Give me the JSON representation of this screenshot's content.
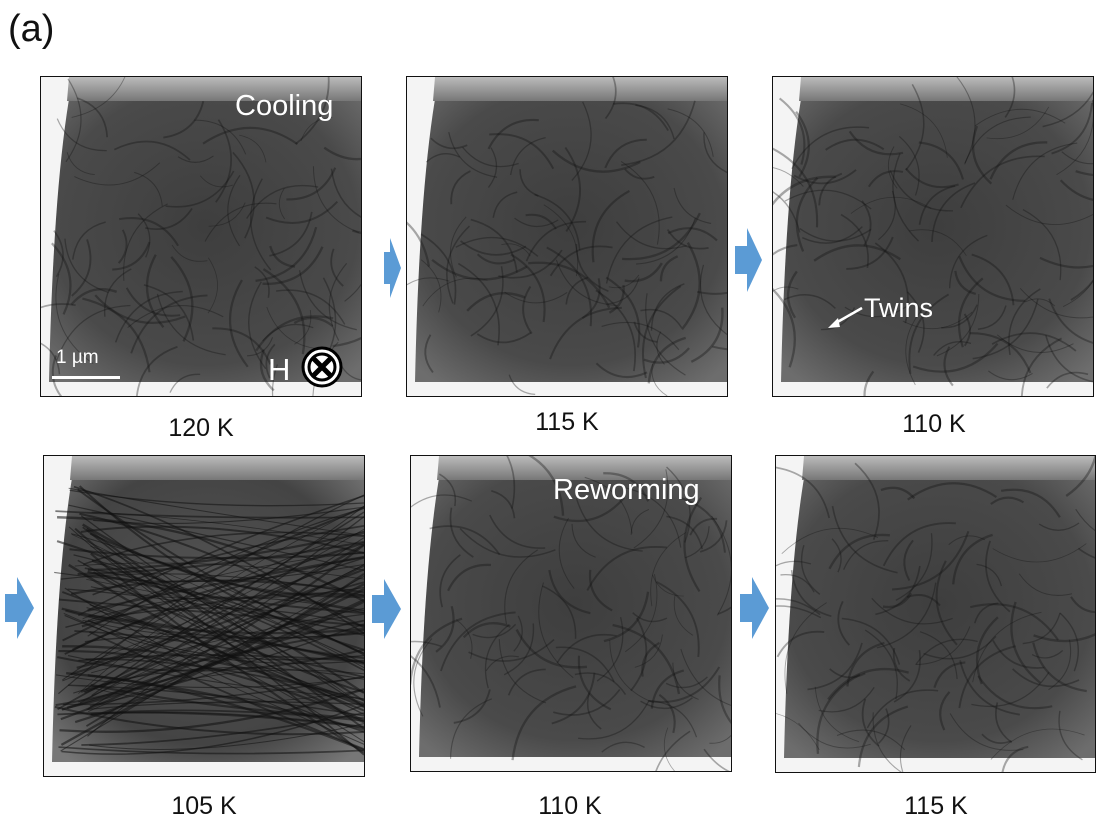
{
  "figure_label": "(a)",
  "panels": [
    {
      "temperature": "120 K",
      "annotations": {
        "phase": "Cooling",
        "scale_bar": "1 µm",
        "field": "H"
      }
    },
    {
      "temperature": "115 K"
    },
    {
      "temperature": "110 K",
      "annotations": {
        "feature": "Twins"
      }
    },
    {
      "temperature": "105 K"
    },
    {
      "temperature": "110 K",
      "annotations": {
        "phase": "Reworming"
      }
    },
    {
      "temperature": "115 K"
    }
  ]
}
